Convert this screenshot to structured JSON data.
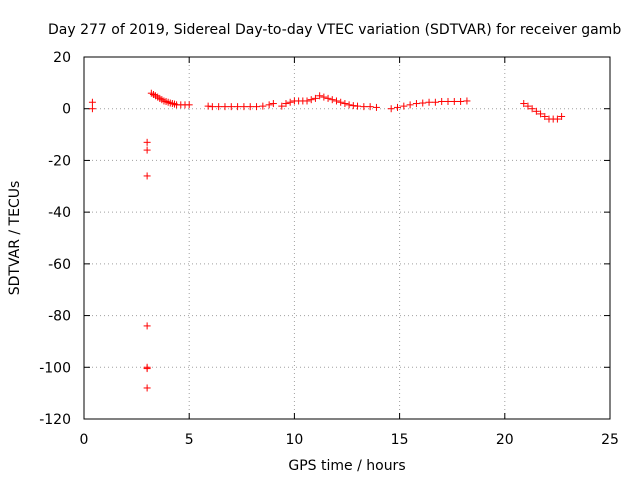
{
  "chart_data": {
    "type": "scatter",
    "title": "Day 277 of 2019, Sidereal Day-to-day VTEC variation (SDTVAR) for receiver gamb",
    "xlabel": "GPS time / hours",
    "ylabel": "SDTVAR / TECUs",
    "xlim": [
      0,
      25
    ],
    "ylim": [
      -120,
      20
    ],
    "xticks": [
      0,
      5,
      10,
      15,
      20,
      25
    ],
    "yticks": [
      -120,
      -100,
      -80,
      -60,
      -40,
      -20,
      0,
      20
    ],
    "xtick_labels": [
      "0",
      "5",
      "10",
      "15",
      "20",
      "25"
    ],
    "ytick_labels": [
      "-120",
      "-100",
      "-80",
      "-60",
      "-40",
      "-20",
      "0",
      "20"
    ],
    "grid": true,
    "marker": "+",
    "color": "#ff0000",
    "series": [
      {
        "name": "SDTVAR",
        "x": [
          0.4,
          0.4,
          3.0,
          3.0,
          3.0,
          3.0,
          3.0,
          3.0,
          3.0,
          3.2,
          3.3,
          3.4,
          3.5,
          3.6,
          3.7,
          3.8,
          3.9,
          4.0,
          4.1,
          4.2,
          4.3,
          4.4,
          4.6,
          4.8,
          5.0,
          5.9,
          6.1,
          6.4,
          6.7,
          7.0,
          7.3,
          7.6,
          7.9,
          8.2,
          8.5,
          8.8,
          9.0,
          9.4,
          9.6,
          9.8,
          10.0,
          10.2,
          10.4,
          10.6,
          10.8,
          11.0,
          11.2,
          11.4,
          11.6,
          11.8,
          12.0,
          12.2,
          12.4,
          12.6,
          12.8,
          13.0,
          13.3,
          13.6,
          13.9,
          14.6,
          14.9,
          15.2,
          15.5,
          15.8,
          16.1,
          16.4,
          16.7,
          17.0,
          17.3,
          17.6,
          17.9,
          18.2,
          20.9,
          21.1,
          21.3,
          21.5,
          21.7,
          21.9,
          22.1,
          22.3,
          22.5,
          22.7
        ],
        "y": [
          2.5,
          0,
          -13,
          -16,
          -26,
          -84,
          -100,
          -100.5,
          -108,
          6,
          5.5,
          5,
          4.5,
          4,
          3.5,
          3,
          2.8,
          2.5,
          2.2,
          2,
          1.8,
          1.5,
          1.5,
          1.5,
          1.5,
          1,
          0.8,
          0.8,
          0.8,
          0.8,
          0.8,
          0.8,
          0.8,
          0.8,
          1,
          1.5,
          2,
          1,
          2,
          2.5,
          3,
          3,
          3,
          3,
          3.5,
          4,
          5,
          4.5,
          4,
          3.5,
          3,
          2.5,
          2,
          1.5,
          1.2,
          1,
          0.8,
          0.8,
          0.5,
          0,
          0.5,
          1,
          1.5,
          2,
          2.2,
          2.5,
          2.5,
          2.8,
          2.8,
          2.8,
          2.8,
          3,
          2,
          1,
          0,
          -1,
          -2,
          -3,
          -4,
          -4,
          -4,
          -3
        ]
      }
    ]
  }
}
